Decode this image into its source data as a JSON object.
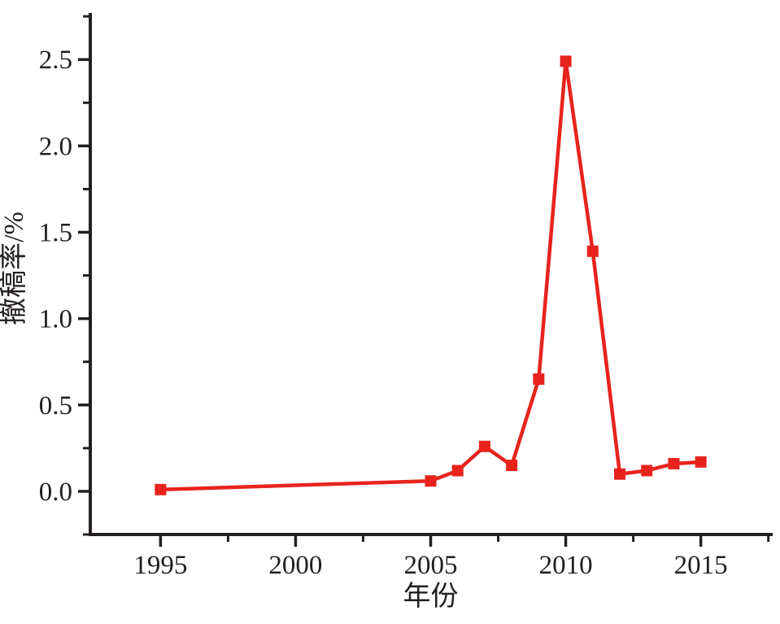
{
  "figure": {
    "background": "#ffffff"
  },
  "chart_data": {
    "type": "line",
    "title": "",
    "xlabel": "年份",
    "ylabel": "撤稿率/%",
    "x": [
      1995,
      2005,
      2006,
      2007,
      2008,
      2009,
      2010,
      2011,
      2012,
      2013,
      2014,
      2015
    ],
    "series": [
      {
        "name": "撤稿率",
        "values": [
          0.01,
          0.06,
          0.12,
          0.26,
          0.15,
          0.65,
          2.49,
          1.39,
          0.1,
          0.12,
          0.16,
          0.17
        ]
      }
    ],
    "xlim": [
      1992.4,
      2017.6
    ],
    "ylim": [
      -0.25,
      2.76
    ],
    "x_major_ticks": [
      1995,
      2000,
      2005,
      2010,
      2015
    ],
    "x_major_tick_labels": [
      "1995",
      "2000",
      "2005",
      "2010",
      "2015"
    ],
    "x_minor_ticks": [
      1997.5,
      2002.5,
      2007.5,
      2012.5,
      2017.5
    ],
    "y_major_ticks": [
      0.0,
      0.5,
      1.0,
      1.5,
      2.0,
      2.5
    ],
    "y_major_tick_labels": [
      "0.0",
      "0.5",
      "1.0",
      "1.5",
      "2.0",
      "2.5"
    ],
    "y_minor_ticks": [
      -0.25,
      0.25,
      0.75,
      1.25,
      1.75,
      2.25,
      2.75
    ],
    "grid": false,
    "legend": "none",
    "marker": "square",
    "line_color": "#e8231d",
    "marker_color": "#e8231d",
    "axis_color": "#231f20"
  }
}
